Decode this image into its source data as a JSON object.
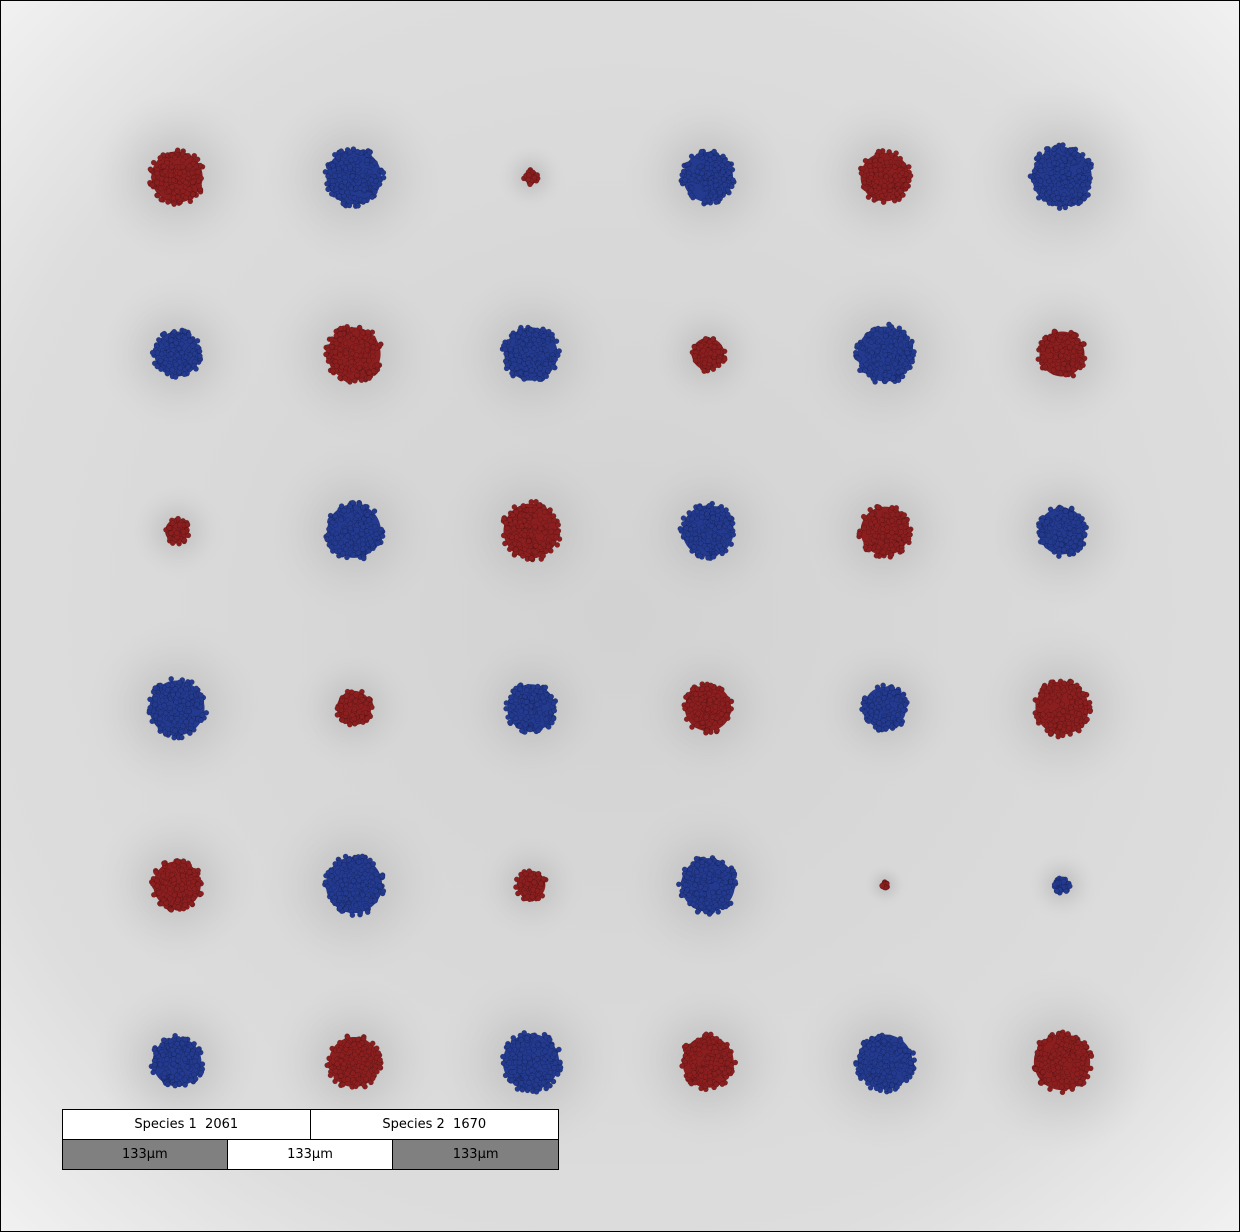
{
  "colors": {
    "species1": "#8b1f1f",
    "species2": "#233a8f",
    "background_light": "#f4f4f4",
    "background_shadow": "#c4c4c4",
    "frame": "#000000"
  },
  "legend": {
    "species": [
      {
        "label": "Species 1",
        "count": "2061",
        "color_key": "species1"
      },
      {
        "label": "Species 2",
        "count": "1670",
        "color_key": "species2"
      }
    ],
    "scale": [
      {
        "text": "133µm",
        "shade": "dark"
      },
      {
        "text": "133µm",
        "shade": "light"
      },
      {
        "text": "133µm",
        "shade": "dark"
      }
    ]
  },
  "colonies": {
    "rows": 6,
    "cols": 6,
    "cells": [
      [
        {
          "species": 1,
          "size": 0.82
        },
        {
          "species": 2,
          "size": 0.88
        },
        {
          "species": 1,
          "size": 0.22
        },
        {
          "species": 2,
          "size": 0.8
        },
        {
          "species": 1,
          "size": 0.78
        },
        {
          "species": 2,
          "size": 0.95
        }
      ],
      [
        {
          "species": 2,
          "size": 0.72
        },
        {
          "species": 1,
          "size": 0.85
        },
        {
          "species": 2,
          "size": 0.85
        },
        {
          "species": 1,
          "size": 0.52
        },
        {
          "species": 2,
          "size": 0.88
        },
        {
          "species": 1,
          "size": 0.72
        }
      ],
      [
        {
          "species": 1,
          "size": 0.38
        },
        {
          "species": 2,
          "size": 0.86
        },
        {
          "species": 1,
          "size": 0.88
        },
        {
          "species": 2,
          "size": 0.82
        },
        {
          "species": 1,
          "size": 0.78
        },
        {
          "species": 2,
          "size": 0.75
        }
      ],
      [
        {
          "species": 2,
          "size": 0.88
        },
        {
          "species": 1,
          "size": 0.55
        },
        {
          "species": 2,
          "size": 0.76
        },
        {
          "species": 1,
          "size": 0.74
        },
        {
          "species": 2,
          "size": 0.68
        },
        {
          "species": 1,
          "size": 0.85
        }
      ],
      [
        {
          "species": 1,
          "size": 0.76
        },
        {
          "species": 2,
          "size": 0.9
        },
        {
          "species": 1,
          "size": 0.46
        },
        {
          "species": 2,
          "size": 0.86
        },
        {
          "species": 1,
          "size": 0.06
        },
        {
          "species": 2,
          "size": 0.24
        }
      ],
      [
        {
          "species": 2,
          "size": 0.78
        },
        {
          "species": 1,
          "size": 0.8
        },
        {
          "species": 2,
          "size": 0.9
        },
        {
          "species": 1,
          "size": 0.82
        },
        {
          "species": 2,
          "size": 0.88
        },
        {
          "species": 1,
          "size": 0.9
        }
      ]
    ]
  }
}
